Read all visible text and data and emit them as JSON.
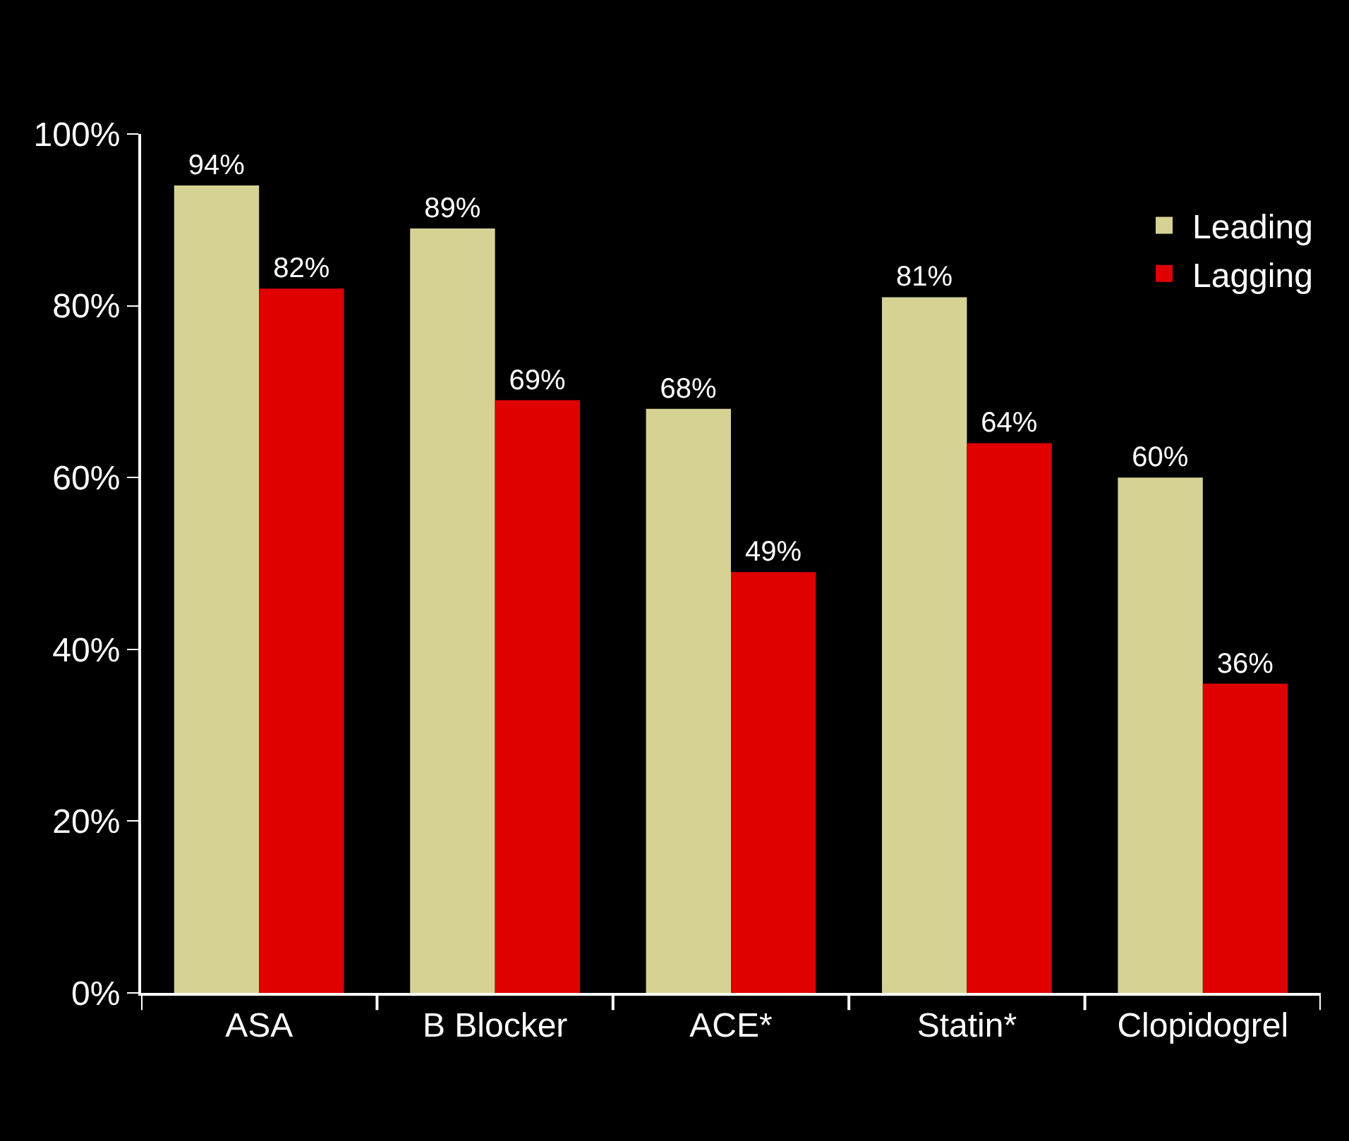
{
  "chart_data": {
    "type": "bar",
    "categories": [
      "ASA",
      "B Blocker",
      "ACE*",
      "Statin*",
      "Clopidogrel"
    ],
    "series": [
      {
        "name": "Leading",
        "color": "#d6d294",
        "values": [
          94,
          89,
          68,
          81,
          60
        ],
        "value_labels": [
          "94%",
          "89%",
          "68%",
          "81%",
          "60%"
        ]
      },
      {
        "name": "Lagging",
        "color": "#e00000",
        "values": [
          82,
          69,
          49,
          64,
          36
        ],
        "value_labels": [
          "82%",
          "69%",
          "49%",
          "64%",
          "36%"
        ]
      }
    ],
    "ylim": [
      0,
      100
    ],
    "yticks": [
      {
        "value": 0,
        "label": "0%"
      },
      {
        "value": 20,
        "label": "20%"
      },
      {
        "value": 40,
        "label": "40%"
      },
      {
        "value": 60,
        "label": "60%"
      },
      {
        "value": 80,
        "label": "80%"
      },
      {
        "value": 100,
        "label": "100%"
      }
    ],
    "grid": false,
    "legend": "top right"
  }
}
